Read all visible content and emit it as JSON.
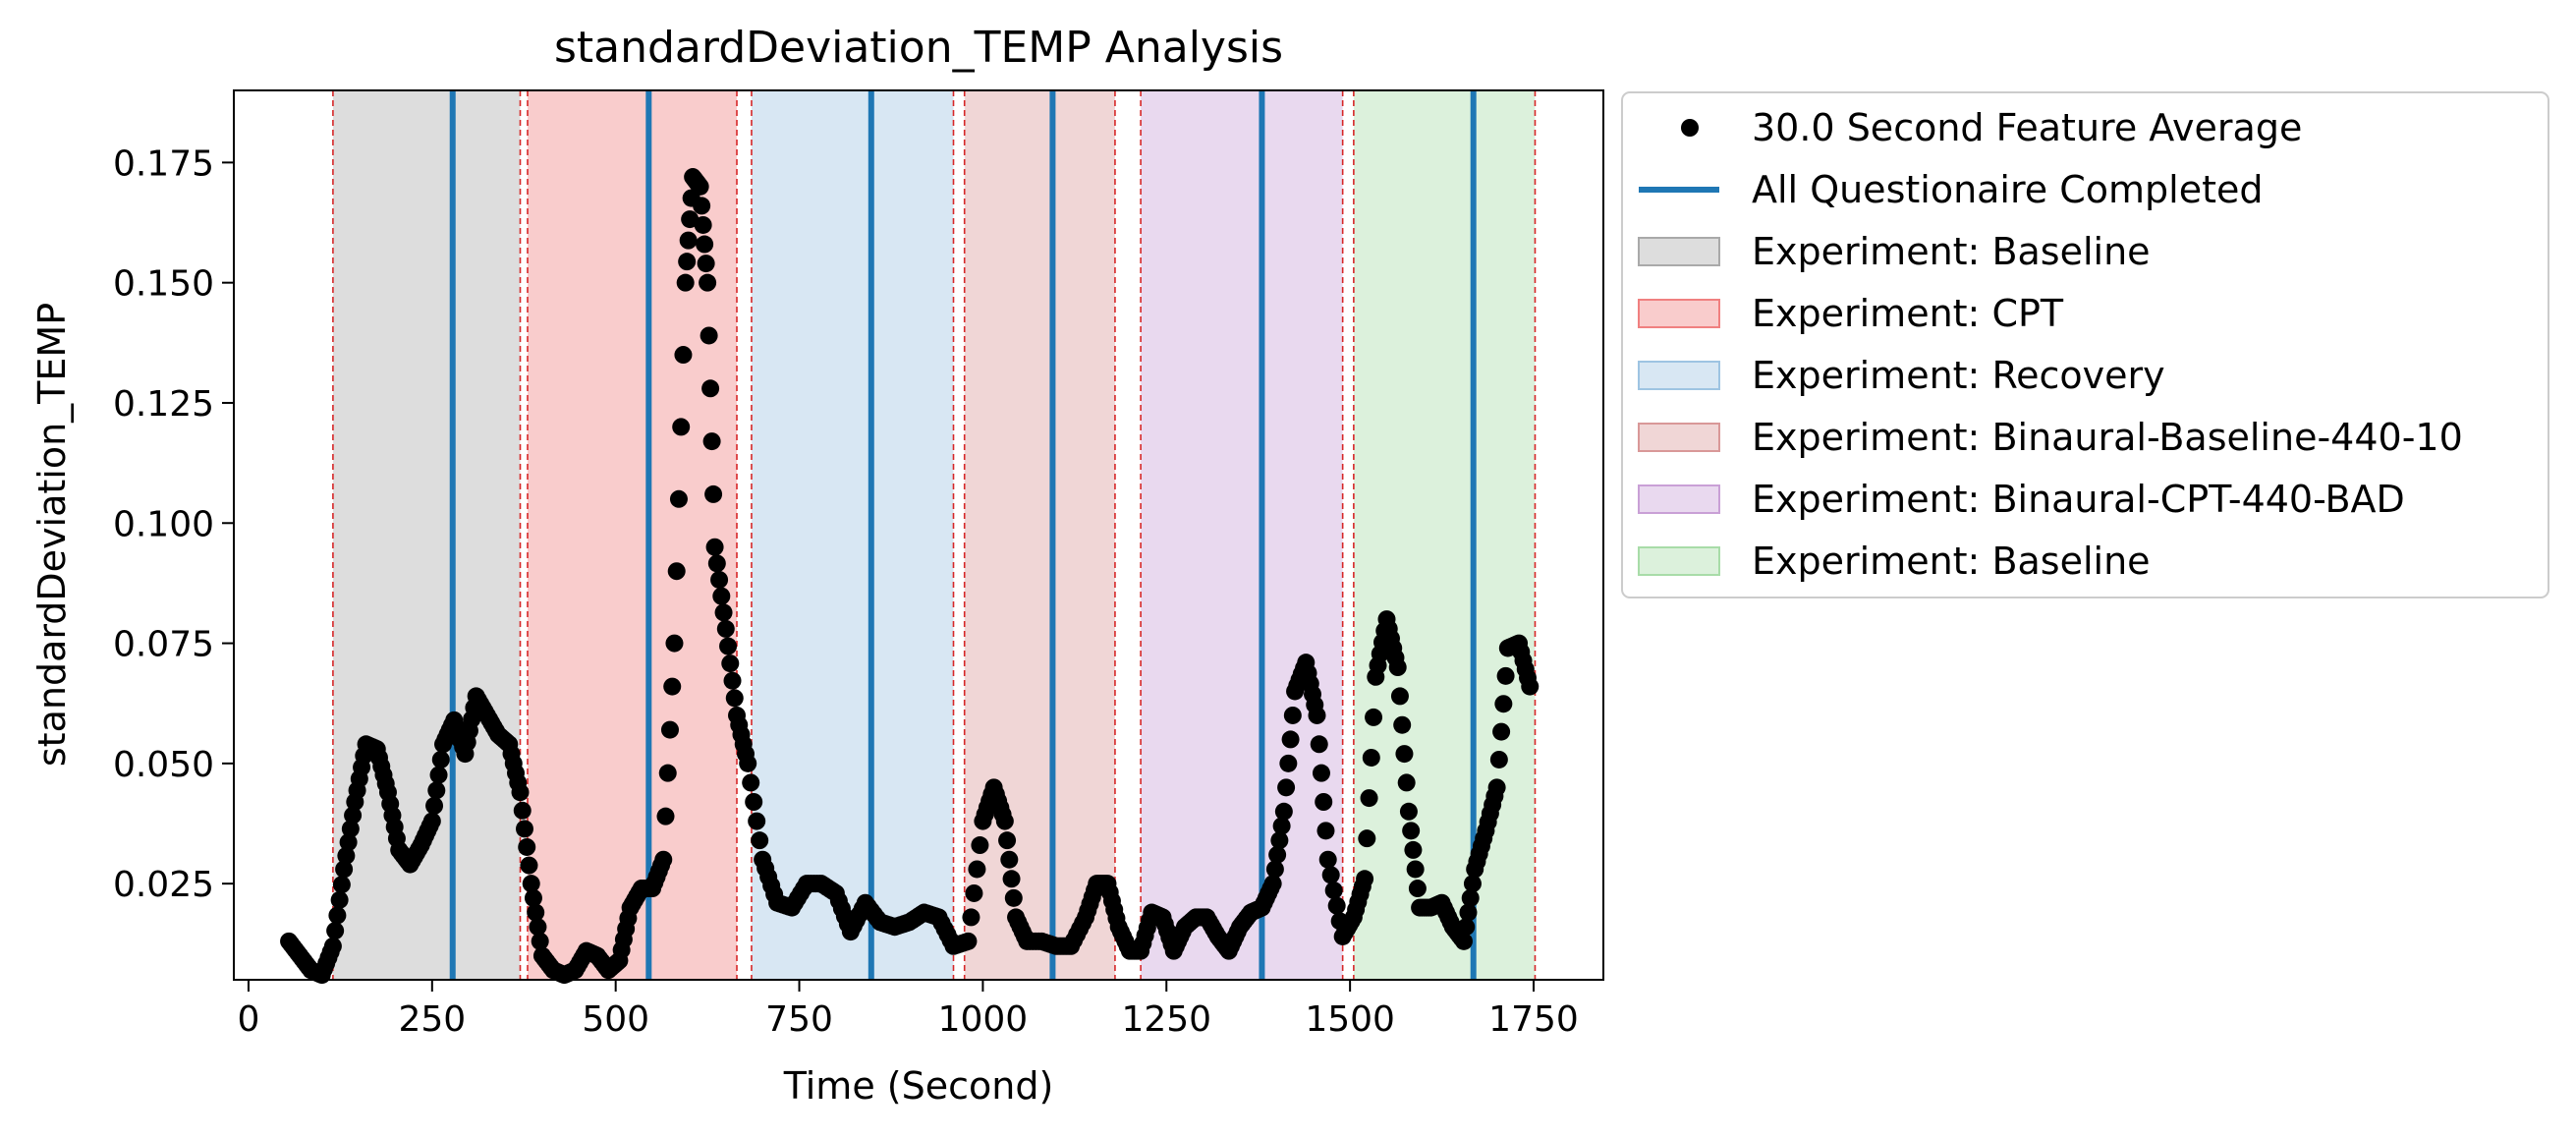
{
  "chart_data": {
    "type": "scatter",
    "title": "standardDeviation_TEMP Analysis",
    "xlabel": "Time (Second)",
    "ylabel": "standardDeviation_TEMP",
    "xlim": [
      -20,
      1845
    ],
    "ylim": [
      0.005,
      0.19
    ],
    "xticks": [
      0,
      250,
      500,
      750,
      1000,
      1250,
      1500,
      1750
    ],
    "yticks": [
      0.025,
      0.05,
      0.075,
      0.1,
      0.125,
      0.15,
      0.175
    ],
    "xtick_labels": [
      "0",
      "250",
      "500",
      "750",
      "1000",
      "1250",
      "1500",
      "1750"
    ],
    "ytick_labels": [
      "0.025",
      "0.050",
      "0.075",
      "0.100",
      "0.125",
      "0.150",
      "0.175"
    ],
    "grid": false,
    "legend_placement": "outside-upper-right",
    "series": [
      {
        "name": "30.0 Second Feature Average",
        "marker": "circle",
        "color": "#000000",
        "points": [
          [
            55,
            0.013
          ],
          [
            70,
            0.01
          ],
          [
            85,
            0.007
          ],
          [
            100,
            0.006
          ],
          [
            115,
            0.012
          ],
          [
            130,
            0.028
          ],
          [
            145,
            0.042
          ],
          [
            160,
            0.054
          ],
          [
            175,
            0.053
          ],
          [
            190,
            0.044
          ],
          [
            205,
            0.032
          ],
          [
            220,
            0.029
          ],
          [
            235,
            0.033
          ],
          [
            250,
            0.038
          ],
          [
            265,
            0.054
          ],
          [
            280,
            0.059
          ],
          [
            295,
            0.052
          ],
          [
            310,
            0.064
          ],
          [
            325,
            0.06
          ],
          [
            340,
            0.056
          ],
          [
            355,
            0.054
          ],
          [
            370,
            0.044
          ],
          [
            385,
            0.025
          ],
          [
            400,
            0.01
          ],
          [
            415,
            0.007
          ],
          [
            430,
            0.006
          ],
          [
            445,
            0.007
          ],
          [
            460,
            0.011
          ],
          [
            475,
            0.01
          ],
          [
            490,
            0.007
          ],
          [
            505,
            0.009
          ],
          [
            520,
            0.02
          ],
          [
            535,
            0.024
          ],
          [
            550,
            0.024
          ],
          [
            565,
            0.03
          ],
          [
            580,
            0.075
          ],
          [
            595,
            0.15
          ],
          [
            605,
            0.172
          ],
          [
            615,
            0.17
          ],
          [
            625,
            0.15
          ],
          [
            635,
            0.095
          ],
          [
            650,
            0.078
          ],
          [
            665,
            0.06
          ],
          [
            680,
            0.05
          ],
          [
            700,
            0.03
          ],
          [
            720,
            0.021
          ],
          [
            740,
            0.02
          ],
          [
            760,
            0.025
          ],
          [
            780,
            0.025
          ],
          [
            800,
            0.023
          ],
          [
            820,
            0.015
          ],
          [
            840,
            0.021
          ],
          [
            860,
            0.017
          ],
          [
            880,
            0.016
          ],
          [
            900,
            0.017
          ],
          [
            920,
            0.019
          ],
          [
            940,
            0.018
          ],
          [
            960,
            0.012
          ],
          [
            980,
            0.013
          ],
          [
            1000,
            0.038
          ],
          [
            1015,
            0.045
          ],
          [
            1030,
            0.038
          ],
          [
            1045,
            0.018
          ],
          [
            1060,
            0.013
          ],
          [
            1080,
            0.013
          ],
          [
            1100,
            0.012
          ],
          [
            1120,
            0.012
          ],
          [
            1140,
            0.018
          ],
          [
            1155,
            0.025
          ],
          [
            1170,
            0.025
          ],
          [
            1185,
            0.016
          ],
          [
            1200,
            0.011
          ],
          [
            1215,
            0.011
          ],
          [
            1230,
            0.019
          ],
          [
            1245,
            0.018
          ],
          [
            1260,
            0.011
          ],
          [
            1275,
            0.016
          ],
          [
            1290,
            0.018
          ],
          [
            1305,
            0.018
          ],
          [
            1320,
            0.014
          ],
          [
            1335,
            0.011
          ],
          [
            1350,
            0.016
          ],
          [
            1365,
            0.019
          ],
          [
            1380,
            0.02
          ],
          [
            1395,
            0.025
          ],
          [
            1410,
            0.04
          ],
          [
            1425,
            0.065
          ],
          [
            1440,
            0.071
          ],
          [
            1455,
            0.06
          ],
          [
            1470,
            0.03
          ],
          [
            1490,
            0.014
          ],
          [
            1505,
            0.018
          ],
          [
            1520,
            0.026
          ],
          [
            1535,
            0.068
          ],
          [
            1550,
            0.08
          ],
          [
            1565,
            0.07
          ],
          [
            1580,
            0.04
          ],
          [
            1595,
            0.02
          ],
          [
            1610,
            0.02
          ],
          [
            1625,
            0.021
          ],
          [
            1640,
            0.016
          ],
          [
            1655,
            0.013
          ],
          [
            1670,
            0.028
          ],
          [
            1685,
            0.036
          ],
          [
            1700,
            0.045
          ],
          [
            1715,
            0.074
          ],
          [
            1730,
            0.075
          ],
          [
            1745,
            0.066
          ]
        ]
      }
    ],
    "vlines": {
      "name": "All Questionaire Completed",
      "color": "#1f77b4",
      "x": [
        278,
        545,
        848,
        1095,
        1380,
        1668
      ]
    },
    "boundary_lines": {
      "color": "#d62728",
      "x": [
        115,
        370,
        380,
        665,
        685,
        960,
        975,
        1180,
        1215,
        1490,
        1505,
        1752
      ]
    },
    "spans": [
      {
        "name": "Experiment: Baseline",
        "start": 115,
        "end": 370,
        "color": "#a9a9a9"
      },
      {
        "name": "Experiment: CPT",
        "start": 380,
        "end": 665,
        "color": "#f08080"
      },
      {
        "name": "Experiment: Recovery",
        "start": 685,
        "end": 960,
        "color": "#9ec4e2"
      },
      {
        "name": "Experiment: Binaural-Baseline-440-10",
        "start": 975,
        "end": 1180,
        "color": "#d99898"
      },
      {
        "name": "Experiment: Binaural-CPT-440-BAD",
        "start": 1215,
        "end": 1490,
        "color": "#c9a0d6"
      },
      {
        "name": "Experiment: Baseline",
        "start": 1505,
        "end": 1752,
        "color": "#a8dca8"
      }
    ]
  }
}
